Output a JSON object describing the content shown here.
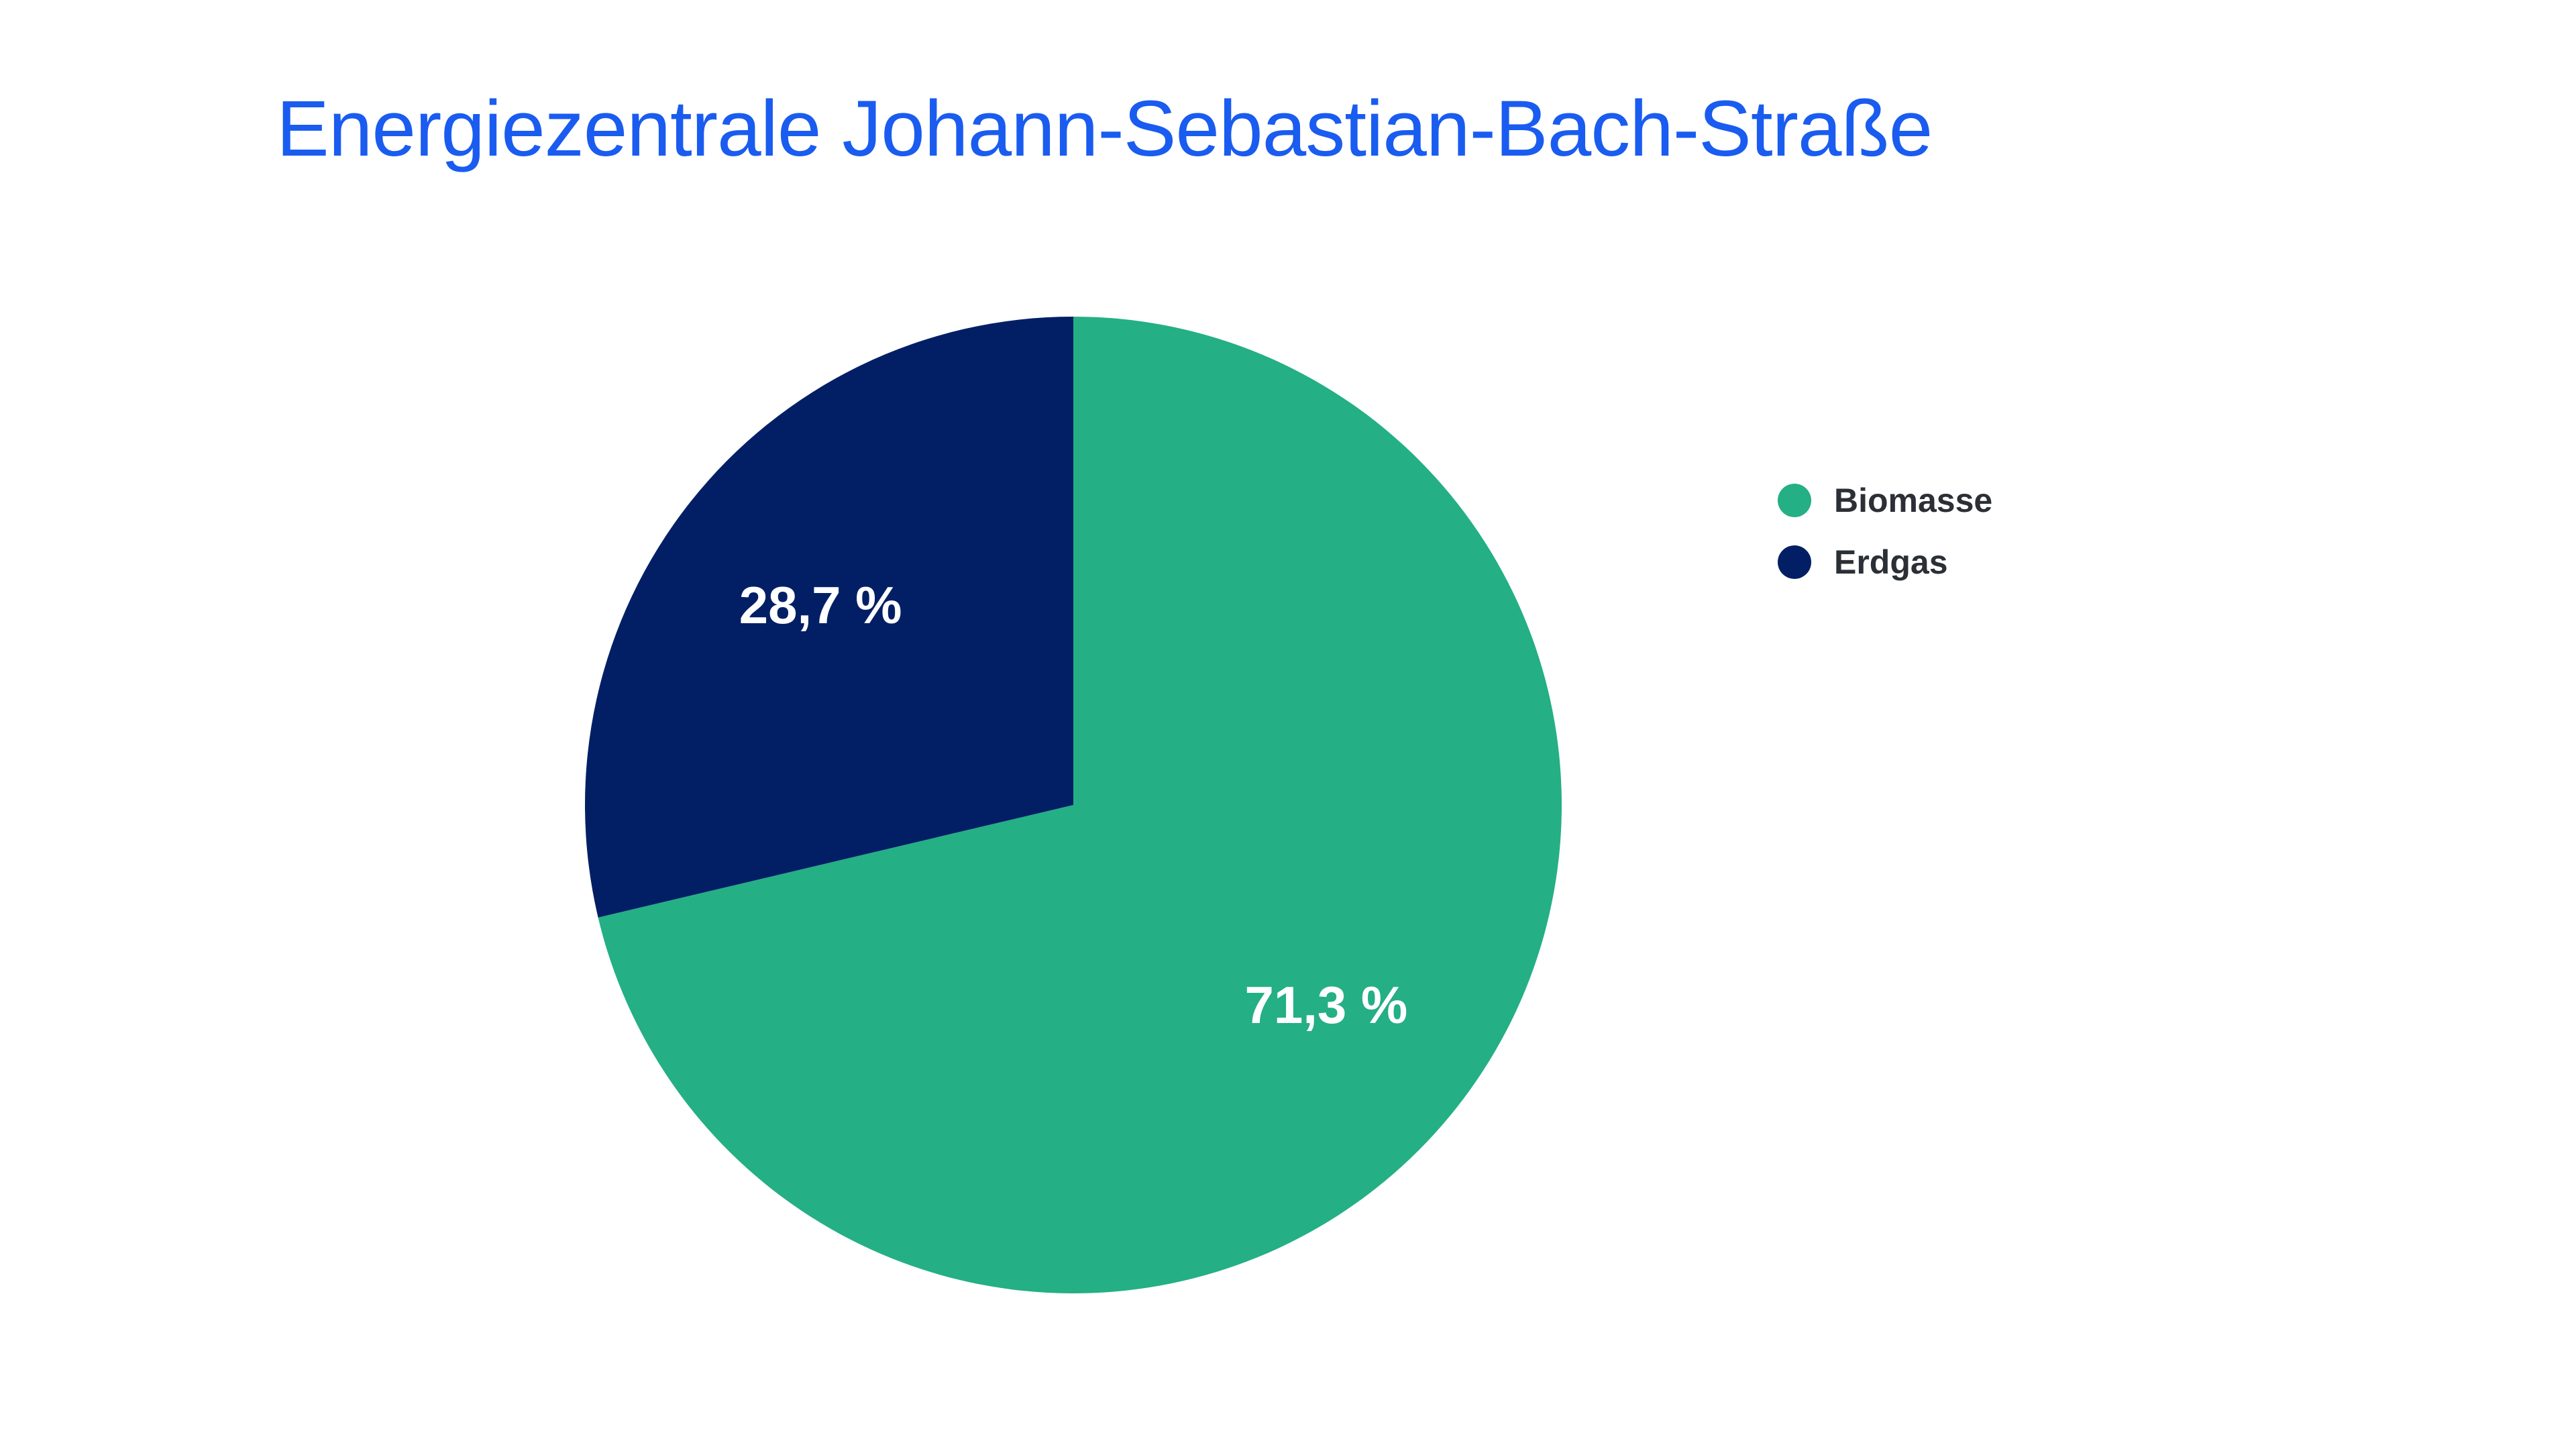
{
  "colors": {
    "title": "#1a5cf0",
    "biomasse": "#24af85",
    "erdgas": "#021f66"
  },
  "chart_data": {
    "type": "pie",
    "title": "Energiezentrale Johann-Sebastian-Bach-Straße",
    "start_angle_deg": 0,
    "direction": "clockwise",
    "legend_position": "right",
    "slices": [
      {
        "name": "Biomasse",
        "value": 71.3,
        "label": "71,3 %",
        "color": "#24af85"
      },
      {
        "name": "Erdgas",
        "value": 28.7,
        "label": "28,7 %",
        "color": "#021f66"
      }
    ]
  }
}
